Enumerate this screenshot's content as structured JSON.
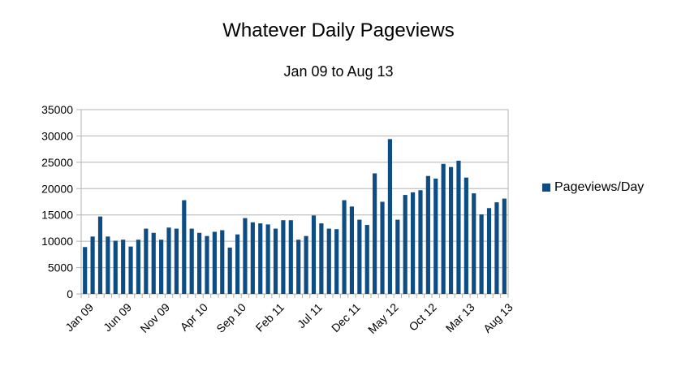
{
  "chart_data": {
    "type": "bar",
    "title": "Whatever Daily Pageviews",
    "subtitle": "Jan 09 to Aug 13",
    "xlabel": "",
    "ylabel": "",
    "ylim": [
      0,
      35000
    ],
    "yticks": [
      0,
      5000,
      10000,
      15000,
      20000,
      25000,
      30000,
      35000
    ],
    "grid": true,
    "legend_position": "right",
    "bar_color": "#0e4c84",
    "categories": [
      "Jan 09",
      "Feb 09",
      "Mar 09",
      "Apr 09",
      "May 09",
      "Jun 09",
      "Jul 09",
      "Aug 09",
      "Sep 09",
      "Oct 09",
      "Nov 09",
      "Dec 09",
      "Jan 10",
      "Feb 10",
      "Mar 10",
      "Apr 10",
      "May 10",
      "Jun 10",
      "Jul 10",
      "Aug 10",
      "Sep 10",
      "Oct 10",
      "Nov 10",
      "Dec 10",
      "Jan 11",
      "Feb 11",
      "Mar 11",
      "Apr 11",
      "May 11",
      "Jun 11",
      "Jul 11",
      "Aug 11",
      "Sep 11",
      "Oct 11",
      "Nov 11",
      "Dec 11",
      "Jan 12",
      "Feb 12",
      "Mar 12",
      "Apr 12",
      "May 12",
      "Jun 12",
      "Jul 12",
      "Aug 12",
      "Sep 12",
      "Oct 12",
      "Nov 12",
      "Dec 12",
      "Jan 13",
      "Feb 13",
      "Mar 13",
      "Apr 13",
      "May 13",
      "Jun 13",
      "Jul 13",
      "Aug 13"
    ],
    "tick_labels": [
      "Jan 09",
      "Jun 09",
      "Nov 09",
      "Apr 10",
      "Sep 10",
      "Feb 11",
      "Jul 11",
      "Dec 11",
      "May 12",
      "Oct 12",
      "Mar 13",
      "Aug 13"
    ],
    "series": [
      {
        "name": "Pageviews/Day",
        "values": [
          8900,
          10900,
          14700,
          10900,
          10100,
          10300,
          9000,
          10300,
          12400,
          11600,
          10300,
          12600,
          12400,
          17800,
          12400,
          11600,
          11000,
          11800,
          12100,
          8800,
          11300,
          14400,
          13600,
          13400,
          13200,
          12400,
          14000,
          14000,
          10300,
          11000,
          14900,
          13400,
          12400,
          12300,
          17800,
          16600,
          14100,
          13100,
          22900,
          17500,
          29400,
          14100,
          18800,
          19300,
          19700,
          22400,
          21900,
          24700,
          24100,
          25300,
          22100,
          19100,
          15100,
          16300,
          17400,
          18100
        ]
      }
    ]
  }
}
